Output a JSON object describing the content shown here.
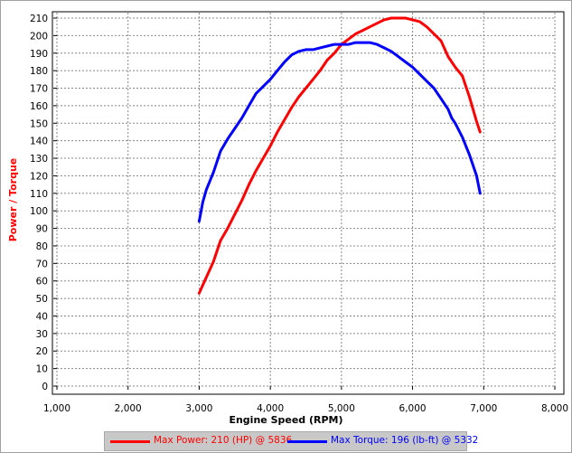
{
  "chart_data": {
    "type": "line",
    "xlabel": "Engine Speed (RPM)",
    "ylabel": "Power / Torque",
    "xlim": [
      1000,
      8000
    ],
    "ylim": [
      0,
      210
    ],
    "x_ticks": [
      1000,
      2000,
      3000,
      4000,
      5000,
      6000,
      7000,
      8000
    ],
    "x_tick_labels": [
      "1,000",
      "2,000",
      "3,000",
      "4,000",
      "5,000",
      "6,000",
      "7,000",
      "8,000"
    ],
    "y_ticks": [
      0,
      10,
      20,
      30,
      40,
      50,
      60,
      70,
      80,
      90,
      100,
      110,
      120,
      130,
      140,
      150,
      160,
      170,
      180,
      190,
      200,
      210
    ],
    "grid": true,
    "legend_position": "bottom",
    "series": [
      {
        "name": "Max Power: 210 (HP) @ 5836",
        "color": "#ff0000",
        "x": [
          3000,
          3100,
          3200,
          3300,
          3400,
          3500,
          3600,
          3700,
          3800,
          3900,
          4000,
          4100,
          4200,
          4300,
          4400,
          4500,
          4600,
          4700,
          4800,
          4900,
          5000,
          5100,
          5200,
          5300,
          5400,
          5500,
          5600,
          5700,
          5800,
          5836,
          5900,
          6000,
          6100,
          6200,
          6300,
          6400,
          6500,
          6550,
          6600,
          6700,
          6800,
          6900,
          6950
        ],
        "y": [
          53,
          62,
          71,
          83,
          90,
          98,
          106,
          115,
          123,
          130,
          137,
          145,
          152,
          159,
          165,
          170,
          175,
          180,
          186,
          190,
          195,
          198,
          201,
          203,
          205,
          207,
          209,
          210,
          210,
          210,
          210,
          209,
          208,
          205,
          201,
          197,
          188,
          185,
          182,
          177,
          165,
          151,
          145
        ]
      },
      {
        "name": "Max Torque: 196 (lb-ft) @ 5332",
        "color": "#0000ff",
        "x": [
          3000,
          3050,
          3100,
          3200,
          3300,
          3400,
          3500,
          3600,
          3700,
          3800,
          3900,
          4000,
          4100,
          4200,
          4300,
          4400,
          4500,
          4600,
          4700,
          4800,
          4900,
          5000,
          5100,
          5200,
          5332,
          5400,
          5500,
          5600,
          5700,
          5800,
          5900,
          6000,
          6100,
          6200,
          6300,
          6400,
          6500,
          6550,
          6600,
          6700,
          6800,
          6900,
          6950
        ],
        "y": [
          94,
          105,
          112,
          122,
          134,
          141,
          147,
          153,
          160,
          167,
          171,
          175,
          180,
          185,
          189,
          191,
          192,
          192,
          193,
          194,
          195,
          195,
          195,
          196,
          196,
          196,
          195,
          193,
          191,
          188,
          185,
          182,
          178,
          174,
          170,
          164,
          158,
          153,
          150,
          142,
          132,
          120,
          110
        ]
      }
    ]
  }
}
